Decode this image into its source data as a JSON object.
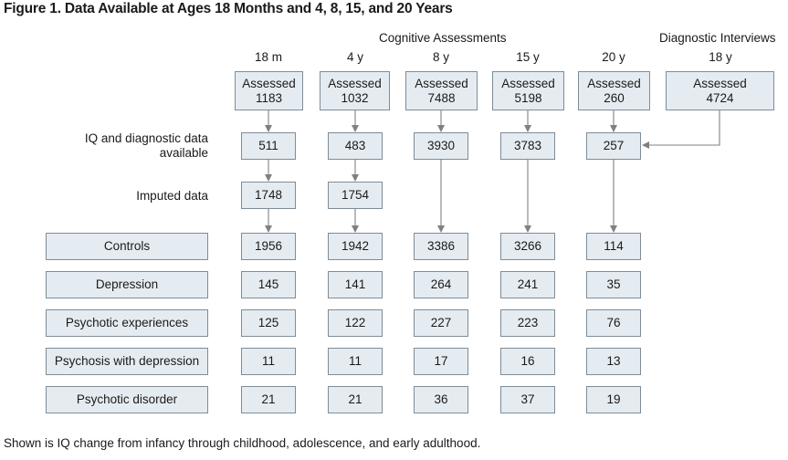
{
  "figure": {
    "title": "Figure 1.  Data Available at Ages 18 Months and 4, 8, 15, and 20 Years",
    "caption": "Shown is IQ change from infancy through childhood, adolescence, and early adulthood."
  },
  "headers": {
    "cognitive": "Cognitive Assessments",
    "diagnostic": "Diagnostic Interviews"
  },
  "columns": [
    {
      "age": "18 m",
      "assessed_label": "Assessed",
      "assessed": "1183",
      "iq_available": "511",
      "imputed": "1748"
    },
    {
      "age": "4 y",
      "assessed_label": "Assessed",
      "assessed": "1032",
      "iq_available": "483",
      "imputed": "1754"
    },
    {
      "age": "8 y",
      "assessed_label": "Assessed",
      "assessed": "7488",
      "iq_available": "3930"
    },
    {
      "age": "15 y",
      "assessed_label": "Assessed",
      "assessed": "5198",
      "iq_available": "3783"
    },
    {
      "age": "20 y",
      "assessed_label": "Assessed",
      "assessed": "260",
      "iq_available": "257"
    }
  ],
  "diagnostic_column": {
    "age": "18 y",
    "assessed_label": "Assessed",
    "assessed": "4724"
  },
  "row_labels": {
    "iq_line1": "IQ and diagnostic data",
    "iq_line2": "available",
    "imputed": "Imputed data"
  },
  "groups": [
    {
      "label": "Controls",
      "values": [
        "1956",
        "1942",
        "3386",
        "3266",
        "114"
      ]
    },
    {
      "label": "Depression",
      "values": [
        "145",
        "141",
        "264",
        "241",
        "35"
      ]
    },
    {
      "label": "Psychotic experiences",
      "values": [
        "125",
        "122",
        "227",
        "223",
        "76"
      ]
    },
    {
      "label": "Psychosis with depression",
      "values": [
        "11",
        "11",
        "17",
        "16",
        "13"
      ]
    },
    {
      "label": "Psychotic disorder",
      "values": [
        "21",
        "21",
        "36",
        "37",
        "19"
      ]
    }
  ]
}
